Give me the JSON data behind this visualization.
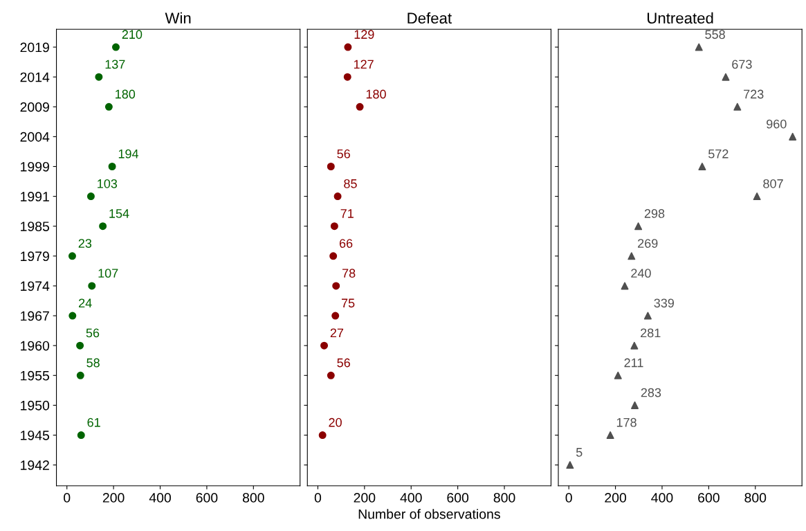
{
  "chart_data": [
    {
      "type": "scatter",
      "orientation": "horizontal",
      "title": "Win",
      "categories": [
        "2019",
        "2014",
        "2009",
        "2004",
        "1999",
        "1991",
        "1985",
        "1979",
        "1974",
        "1967",
        "1960",
        "1955",
        "1950",
        "1945",
        "1942"
      ],
      "series": [
        {
          "color": "#006400",
          "values": [
            210,
            137,
            180,
            null,
            194,
            103,
            154,
            23,
            107,
            24,
            56,
            58,
            null,
            61,
            null
          ]
        }
      ],
      "marker": "circle",
      "data_labels": true,
      "xlim": [
        -45,
        1000
      ],
      "xticks": [
        0,
        200,
        400,
        600,
        800
      ],
      "grid": false
    },
    {
      "type": "scatter",
      "orientation": "horizontal",
      "title": "Defeat",
      "xlabel": "Number of observations",
      "categories": [
        "2019",
        "2014",
        "2009",
        "2004",
        "1999",
        "1991",
        "1985",
        "1979",
        "1974",
        "1967",
        "1960",
        "1955",
        "1950",
        "1945",
        "1942"
      ],
      "series": [
        {
          "color": "#8b0000",
          "values": [
            129,
            127,
            180,
            null,
            56,
            85,
            71,
            66,
            78,
            75,
            27,
            56,
            null,
            20,
            null
          ]
        }
      ],
      "marker": "circle",
      "data_labels": true,
      "xlim": [
        -45,
        1000
      ],
      "xticks": [
        0,
        200,
        400,
        600,
        800
      ],
      "grid": false,
      "tick_labels": "x"
    },
    {
      "type": "scatter",
      "orientation": "horizontal",
      "title": "Untreated",
      "categories": [
        "2019",
        "2014",
        "2009",
        "2004",
        "1999",
        "1991",
        "1985",
        "1979",
        "1974",
        "1967",
        "1960",
        "1955",
        "1950",
        "1945",
        "1942"
      ],
      "series": [
        {
          "color": "#505050",
          "values": [
            558,
            673,
            723,
            960,
            572,
            807,
            298,
            269,
            240,
            339,
            281,
            211,
            283,
            178,
            5
          ]
        }
      ],
      "marker": "triangle",
      "data_labels": true,
      "xlim": [
        -45,
        1000
      ],
      "xticks": [
        0,
        200,
        400,
        600,
        800
      ],
      "grid": false,
      "tick_labels": "x"
    }
  ]
}
